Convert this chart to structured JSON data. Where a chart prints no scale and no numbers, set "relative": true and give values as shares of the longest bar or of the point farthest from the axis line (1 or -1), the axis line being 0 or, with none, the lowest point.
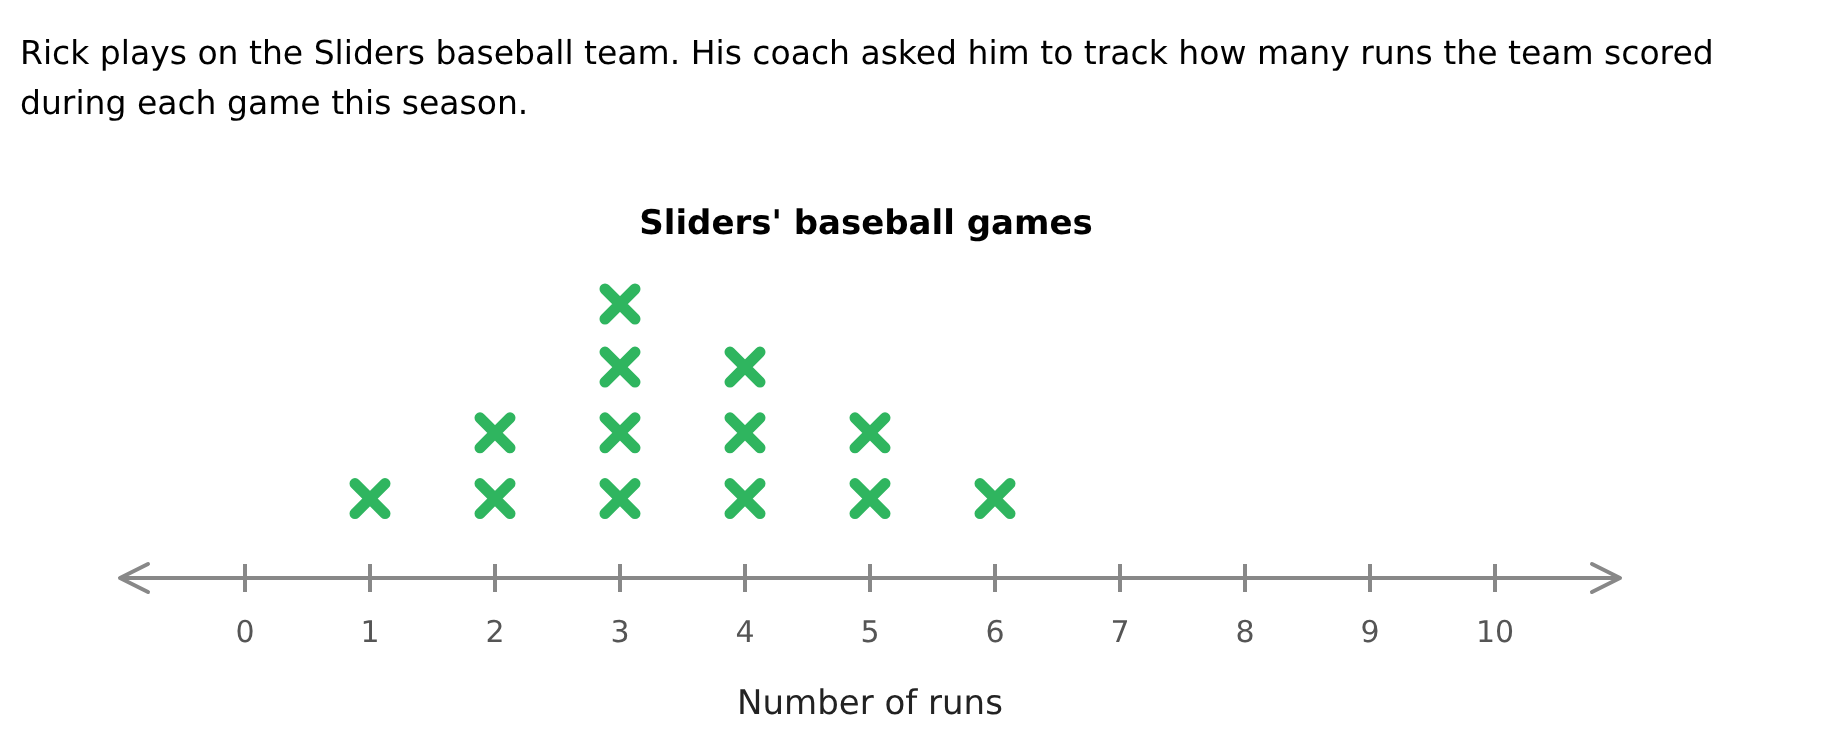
{
  "chart_data": {
    "type": "scatter",
    "title": "Sliders' baseball games",
    "annotations": [
      "Rick plays on the Sliders baseball team. His coach asked him to track how many runs the team scored during each game this season."
    ],
    "xlabel": "Number of runs",
    "x": [
      1,
      2,
      2,
      3,
      3,
      3,
      3,
      4,
      4,
      4,
      5,
      5,
      6
    ],
    "values": [
      0.29,
      0.29,
      0.53,
      0.29,
      0.53,
      0.77,
      1,
      0.29,
      0.53,
      0.77,
      0.29,
      0.53,
      0.29
    ],
    "relative": true,
    "color": "#2fb55f",
    "marker": "cross",
    "grid": false,
    "tick_labels": "x",
    "xlim": [
      -1,
      11
    ],
    "xticks": [
      0,
      1,
      2,
      3,
      4,
      5,
      6,
      7,
      8,
      9,
      10
    ]
  }
}
